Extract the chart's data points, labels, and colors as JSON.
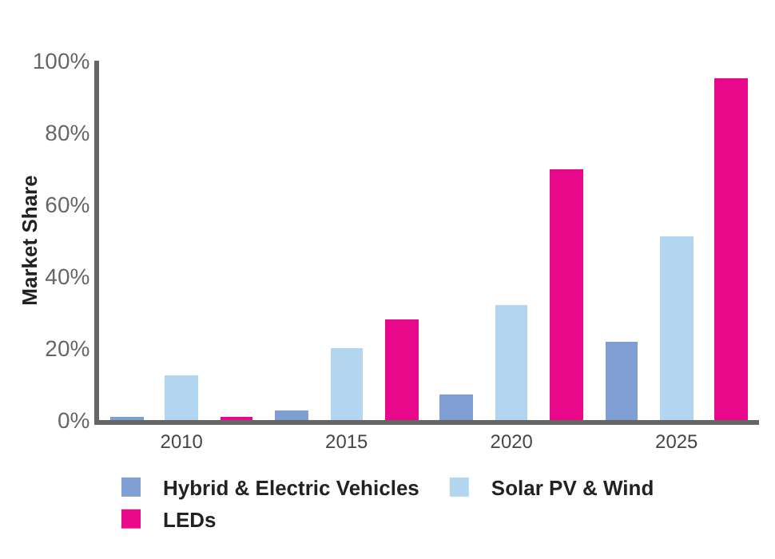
{
  "chart_data": {
    "type": "bar",
    "ylabel": "Market Share",
    "categories": [
      "2010",
      "2015",
      "2020",
      "2025"
    ],
    "series": [
      {
        "name": "Hybrid & Electric Vehicles",
        "color": "#7f9fd3",
        "values": [
          1,
          2.6,
          7,
          22
        ]
      },
      {
        "name": "Solar PV & Wind",
        "color": "#b3d6f0",
        "values": [
          12.5,
          20,
          32,
          51
        ]
      },
      {
        "name": "LEDs",
        "color": "#e8098b",
        "values": [
          1,
          28,
          70,
          95
        ]
      }
    ],
    "ylim": [
      0,
      100
    ],
    "yticks": [
      {
        "value": 0,
        "label": "0%"
      },
      {
        "value": 20,
        "label": "20%"
      },
      {
        "value": 40,
        "label": "40%"
      },
      {
        "value": 60,
        "label": "60%"
      },
      {
        "value": 80,
        "label": "80%"
      },
      {
        "value": 100,
        "label": "100%"
      }
    ],
    "grid": false,
    "legend": "bottom"
  }
}
